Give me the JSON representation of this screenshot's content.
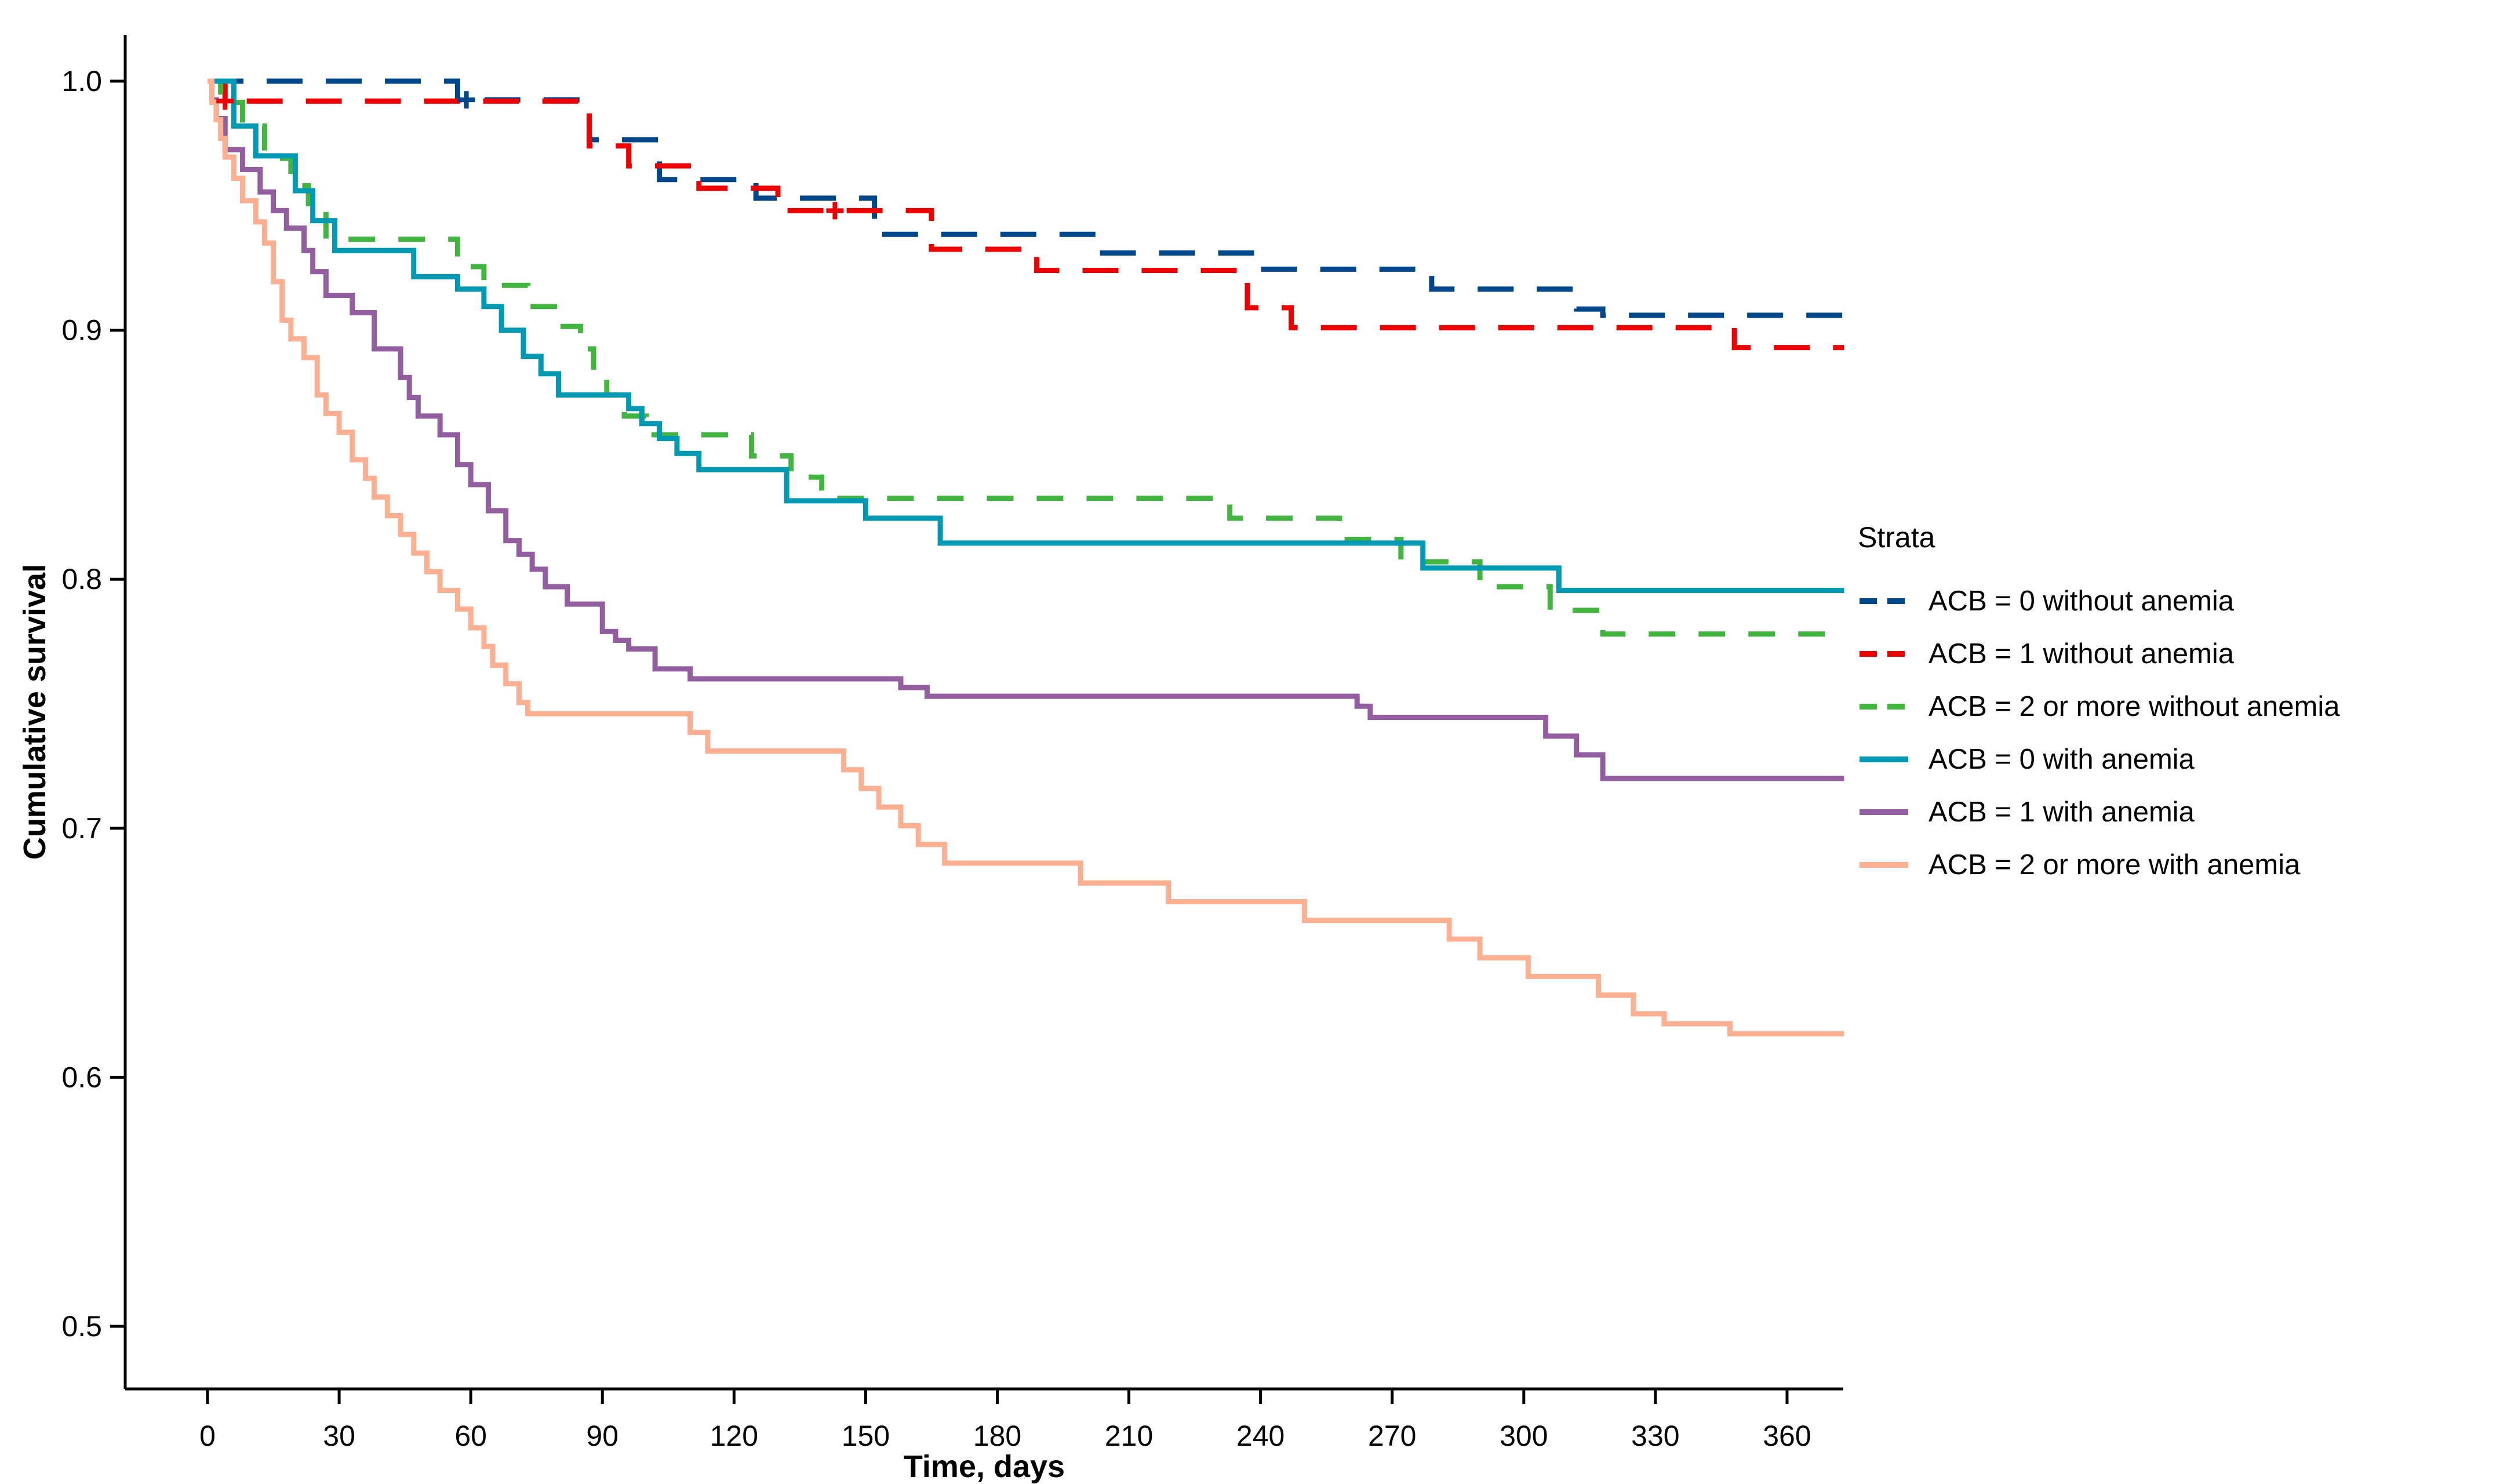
{
  "figure": {
    "background": "#ffffff",
    "text_color": "#000000",
    "axis_color": "#000000"
  },
  "chart_data": {
    "type": "line",
    "subtype": "kaplan_meier_step",
    "title": "",
    "xlabel": "Time, days",
    "ylabel": "Cumulative survival",
    "xlim": [
      -19,
      373
    ],
    "ylim": [
      0.474,
      1.019
    ],
    "xticks": [
      0,
      30,
      60,
      90,
      120,
      150,
      180,
      210,
      240,
      270,
      300,
      330,
      360
    ],
    "xtick_labels": [
      "0",
      "30",
      "60",
      "90",
      "120",
      "150",
      "180",
      "210",
      "240",
      "270",
      "300",
      "330",
      "360"
    ],
    "yticks": [
      1.0,
      0.9,
      0.8,
      0.7,
      0.6,
      0.5
    ],
    "ytick_labels": [
      "1.0",
      "0.9",
      "0.8",
      "0.7",
      "0.6",
      "0.5"
    ],
    "grid": false,
    "legend_title": "Strata",
    "legend_position": "right",
    "end_day": 373,
    "series": [
      {
        "name": "ACB = 0 without anemia",
        "color": "#00468B",
        "line_style": "dashed",
        "dash_pattern": "62 40",
        "points": [
          [
            0,
            1.0
          ],
          [
            57,
            0.9925
          ],
          [
            87,
            0.9765
          ],
          [
            103,
            0.9605
          ],
          [
            125,
            0.953
          ],
          [
            152,
            0.9385
          ],
          [
            204,
            0.931
          ],
          [
            240,
            0.9245
          ],
          [
            279,
            0.9165
          ],
          [
            312,
            0.9085
          ],
          [
            318,
            0.906
          ]
        ]
      },
      {
        "name": "ACB = 1 without anemia",
        "color": "#ED0000",
        "line_style": "dashed",
        "dash_pattern": "62 40",
        "points": [
          [
            0,
            1.0
          ],
          [
            4,
            0.992
          ],
          [
            87,
            0.974
          ],
          [
            96,
            0.966
          ],
          [
            112,
            0.957
          ],
          [
            130,
            0.948
          ],
          [
            165,
            0.9325
          ],
          [
            189,
            0.924
          ],
          [
            237,
            0.909
          ],
          [
            247,
            0.901
          ],
          [
            348,
            0.893
          ]
        ]
      },
      {
        "name": "ACB = 2 or more without anemia",
        "color": "#42B540",
        "line_style": "dashed",
        "dash_pattern": "46 40",
        "points": [
          [
            0,
            1.0
          ],
          [
            3,
            0.9915
          ],
          [
            8,
            0.982
          ],
          [
            13,
            0.969
          ],
          [
            19,
            0.958
          ],
          [
            23,
            0.9475
          ],
          [
            27,
            0.9365
          ],
          [
            57,
            0.9255
          ],
          [
            63,
            0.918
          ],
          [
            73,
            0.9095
          ],
          [
            80,
            0.9015
          ],
          [
            85,
            0.8925
          ],
          [
            88,
            0.8835
          ],
          [
            91,
            0.874
          ],
          [
            95,
            0.8655
          ],
          [
            100,
            0.858
          ],
          [
            124,
            0.8495
          ],
          [
            133,
            0.841
          ],
          [
            140,
            0.8325
          ],
          [
            233,
            0.8245
          ],
          [
            258,
            0.816
          ],
          [
            272,
            0.807
          ],
          [
            290,
            0.797
          ],
          [
            306,
            0.7875
          ],
          [
            318,
            0.778
          ]
        ]
      },
      {
        "name": "ACB = 0 with anemia",
        "color": "#0099B4",
        "line_style": "solid",
        "dash_pattern": "",
        "points": [
          [
            0,
            1.0
          ],
          [
            6,
            0.982
          ],
          [
            11,
            0.97
          ],
          [
            20,
            0.956
          ],
          [
            24,
            0.944
          ],
          [
            29,
            0.932
          ],
          [
            47,
            0.9215
          ],
          [
            57,
            0.9165
          ],
          [
            63,
            0.9095
          ],
          [
            67,
            0.9
          ],
          [
            72,
            0.8895
          ],
          [
            76,
            0.8825
          ],
          [
            80,
            0.874
          ],
          [
            96,
            0.8685
          ],
          [
            99,
            0.8625
          ],
          [
            103,
            0.8565
          ],
          [
            107,
            0.8505
          ],
          [
            112,
            0.844
          ],
          [
            132,
            0.8315
          ],
          [
            150,
            0.8245
          ],
          [
            167,
            0.8145
          ],
          [
            277,
            0.8045
          ],
          [
            308,
            0.7955
          ]
        ]
      },
      {
        "name": "ACB = 1 with anemia",
        "color": "#925E9F",
        "line_style": "solid",
        "dash_pattern": "",
        "points": [
          [
            0,
            1.0
          ],
          [
            1,
            0.9925
          ],
          [
            2,
            0.985
          ],
          [
            4,
            0.9725
          ],
          [
            8,
            0.9645
          ],
          [
            12,
            0.9555
          ],
          [
            15,
            0.948
          ],
          [
            18,
            0.941
          ],
          [
            22,
            0.932
          ],
          [
            24,
            0.9235
          ],
          [
            27,
            0.914
          ],
          [
            33,
            0.907
          ],
          [
            38,
            0.8925
          ],
          [
            44,
            0.881
          ],
          [
            46,
            0.873
          ],
          [
            48,
            0.8655
          ],
          [
            53,
            0.858
          ],
          [
            57,
            0.846
          ],
          [
            60,
            0.838
          ],
          [
            64,
            0.8275
          ],
          [
            68,
            0.8155
          ],
          [
            71,
            0.81
          ],
          [
            74,
            0.804
          ],
          [
            77,
            0.797
          ],
          [
            82,
            0.79
          ],
          [
            90,
            0.779
          ],
          [
            93,
            0.7755
          ],
          [
            96,
            0.772
          ],
          [
            102,
            0.764
          ],
          [
            110,
            0.76
          ],
          [
            158,
            0.7565
          ],
          [
            164,
            0.753
          ],
          [
            262,
            0.749
          ],
          [
            265,
            0.7445
          ],
          [
            305,
            0.737
          ],
          [
            312,
            0.7295
          ],
          [
            318,
            0.72
          ]
        ]
      },
      {
        "name": "ACB = 2 or more with anemia",
        "color": "#FDAF91",
        "line_style": "solid",
        "dash_pattern": "",
        "points": [
          [
            0,
            1.0
          ],
          [
            1,
            0.9915
          ],
          [
            2,
            0.9845
          ],
          [
            3,
            0.977
          ],
          [
            4,
            0.9695
          ],
          [
            6,
            0.961
          ],
          [
            8,
            0.952
          ],
          [
            11,
            0.9435
          ],
          [
            13,
            0.935
          ],
          [
            15,
            0.9195
          ],
          [
            17,
            0.904
          ],
          [
            19,
            0.8965
          ],
          [
            22,
            0.889
          ],
          [
            25,
            0.874
          ],
          [
            27,
            0.8665
          ],
          [
            30,
            0.859
          ],
          [
            33,
            0.848
          ],
          [
            36,
            0.8405
          ],
          [
            38,
            0.833
          ],
          [
            41,
            0.8255
          ],
          [
            44,
            0.818
          ],
          [
            47,
            0.8105
          ],
          [
            50,
            0.803
          ],
          [
            53,
            0.7955
          ],
          [
            57,
            0.788
          ],
          [
            60,
            0.7805
          ],
          [
            63,
            0.773
          ],
          [
            65,
            0.7655
          ],
          [
            68,
            0.758
          ],
          [
            71,
            0.7505
          ],
          [
            73,
            0.746
          ],
          [
            110,
            0.7385
          ],
          [
            114,
            0.731
          ],
          [
            145,
            0.7235
          ],
          [
            149,
            0.716
          ],
          [
            153,
            0.7085
          ],
          [
            158,
            0.701
          ],
          [
            162,
            0.6935
          ],
          [
            168,
            0.686
          ],
          [
            199,
            0.678
          ],
          [
            219,
            0.6705
          ],
          [
            250,
            0.663
          ],
          [
            283,
            0.6555
          ],
          [
            290,
            0.648
          ],
          [
            301,
            0.6405
          ],
          [
            317,
            0.633
          ],
          [
            325,
            0.6255
          ],
          [
            332,
            0.6215
          ],
          [
            347,
            0.6175
          ]
        ]
      }
    ],
    "censor_marks": [
      {
        "series_index": 0,
        "time": 59,
        "survival": 0.9925
      },
      {
        "series_index": 1,
        "time": 4,
        "survival": 0.992
      },
      {
        "series_index": 1,
        "time": 143,
        "survival": 0.948
      }
    ]
  }
}
